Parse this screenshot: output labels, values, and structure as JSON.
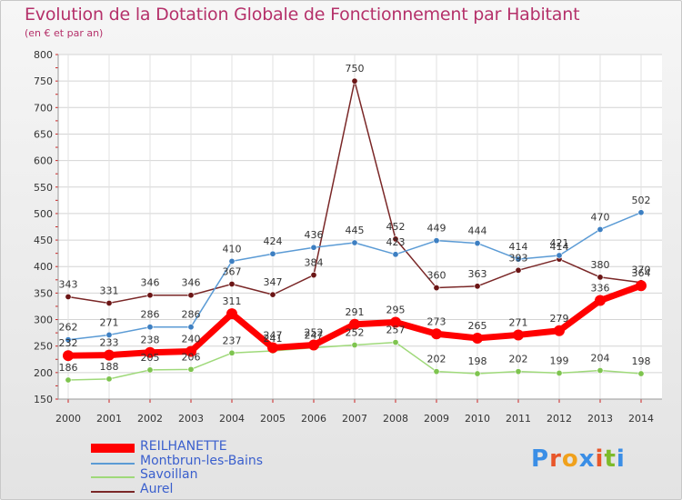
{
  "title": "Evolution de la Dotation Globale de Fonctionnement par Habitant",
  "subtitle": "(en € et par an)",
  "logo": {
    "text": "Proxiti",
    "letter_colors": [
      "#3a8ee6",
      "#e8562a",
      "#f0a11c",
      "#3a8ee6",
      "#e8562a",
      "#7dbb2a",
      "#3a8ee6"
    ]
  },
  "chart_data": {
    "type": "line",
    "title": "Evolution de la Dotation Globale de Fonctionnement par Habitant",
    "ylabel": "(en € et par an)",
    "xlabel": "",
    "ylim": [
      150,
      800
    ],
    "yticks": [
      150,
      200,
      250,
      300,
      350,
      400,
      450,
      500,
      550,
      600,
      650,
      700,
      750,
      800
    ],
    "categories": [
      "2000",
      "2001",
      "2002",
      "2003",
      "2004",
      "2005",
      "2006",
      "2007",
      "2008",
      "2009",
      "2010",
      "2011",
      "2012",
      "2013",
      "2014"
    ],
    "grid": true,
    "legend_position": "bottom-left",
    "series": [
      {
        "name": "Aurel",
        "color": "#7a2727",
        "marker": "#6b1515",
        "values": [
          343,
          331,
          346,
          346,
          367,
          347,
          384,
          750,
          452,
          360,
          363,
          393,
          414,
          380,
          370
        ]
      },
      {
        "name": "Montbrun-les-Bains",
        "color": "#5b9bd5",
        "marker": "#3d7fc2",
        "values": [
          262,
          271,
          286,
          286,
          410,
          424,
          436,
          445,
          423,
          449,
          444,
          414,
          421,
          470,
          502
        ]
      },
      {
        "name": "Savoillan",
        "color": "#9fd97a",
        "marker": "#7ec44f",
        "values": [
          186,
          188,
          205,
          206,
          237,
          241,
          247,
          252,
          257,
          202,
          198,
          202,
          199,
          204,
          198
        ]
      },
      {
        "name": "REILHANETTE",
        "color": "#ff0000",
        "marker": "#ff0000",
        "values": [
          232,
          233,
          238,
          240,
          311,
          247,
          252,
          291,
          295,
          273,
          265,
          271,
          279,
          336,
          364
        ]
      }
    ],
    "legend_order": [
      "REILHANETTE",
      "Montbrun-les-Bains",
      "Savoillan",
      "Aurel"
    ]
  }
}
